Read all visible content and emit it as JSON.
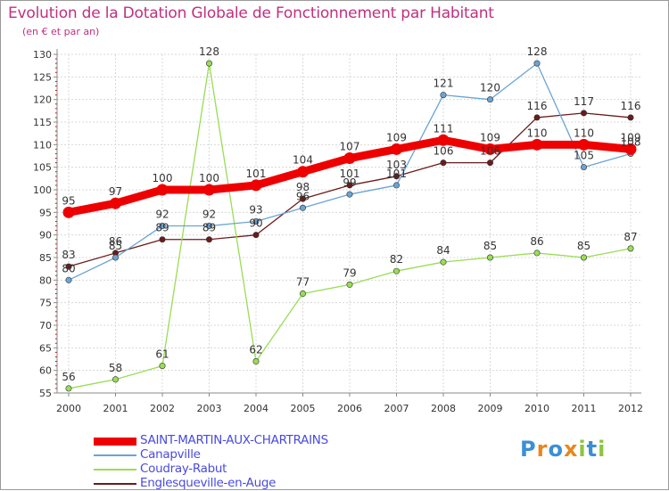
{
  "chart_data": {
    "type": "line",
    "title": "Evolution de la Dotation Globale de Fonctionnement par Habitant",
    "subtitle": "(en € et par an)",
    "xlabel": "",
    "ylabel": "",
    "ylim": [
      55,
      130
    ],
    "y_ticks": [
      55,
      60,
      65,
      70,
      75,
      80,
      85,
      90,
      95,
      100,
      105,
      110,
      115,
      120,
      125,
      130
    ],
    "categories": [
      "2000",
      "2001",
      "2002",
      "2003",
      "2004",
      "2005",
      "2006",
      "2007",
      "2008",
      "2009",
      "2010",
      "2011",
      "2012"
    ],
    "grid": true,
    "legend_position": "bottom-left",
    "series": [
      {
        "name": "Englesqueville-en-Auge",
        "color": "#6b1b1b",
        "values": [
          83,
          86,
          89,
          89,
          90,
          98,
          101,
          103,
          106,
          106,
          116,
          117,
          116
        ],
        "labels": [
          "83",
          "86",
          "89",
          "89",
          "90",
          "98",
          "101",
          "103",
          "106",
          "106",
          "116",
          "117",
          "116"
        ]
      },
      {
        "name": "Coudray-Rabut",
        "color": "#99dd55",
        "values": [
          56,
          58,
          61,
          128,
          62,
          77,
          79,
          82,
          84,
          85,
          86,
          85,
          87
        ],
        "labels": [
          "56",
          "58",
          "61",
          "128",
          "62",
          "77",
          "79",
          "82",
          "84",
          "85",
          "86",
          "85",
          "87"
        ]
      },
      {
        "name": "Canapville",
        "color": "#6aa4d4",
        "values": [
          80,
          85,
          92,
          92,
          93,
          96,
          99,
          101,
          121,
          120,
          128,
          105,
          108
        ],
        "labels": [
          "80",
          "85",
          "92",
          "92",
          "93",
          "96",
          "99",
          "101",
          "121",
          "120",
          "128",
          "105",
          "108"
        ]
      },
      {
        "name": "SAINT-MARTIN-AUX-CHARTRAINS",
        "color": "#ee0000",
        "values": [
          95,
          97,
          100,
          100,
          101,
          104,
          107,
          109,
          111,
          109,
          110,
          110,
          109
        ],
        "labels": [
          "95",
          "97",
          "100",
          "100",
          "101",
          "104",
          "107",
          "109",
          "111",
          "109",
          "110",
          "110",
          "109"
        ]
      }
    ]
  },
  "legend": {
    "items": [
      {
        "label": "SAINT-MARTIN-AUX-CHARTRAINS",
        "color": "#ee0000"
      },
      {
        "label": "Canapville",
        "color": "#6aa4d4"
      },
      {
        "label": "Coudray-Rabut",
        "color": "#99dd55"
      },
      {
        "label": "Englesqueville-en-Auge",
        "color": "#6b1b1b"
      }
    ]
  },
  "logo": {
    "letters": [
      "P",
      "r",
      "o",
      "x",
      "i",
      "t",
      "i"
    ],
    "colors": [
      "#3b8fd6",
      "#e8871e",
      "#3b8fd6",
      "#e8871e",
      "#8cc63e",
      "#3b8fd6",
      "#8cc63e"
    ]
  }
}
